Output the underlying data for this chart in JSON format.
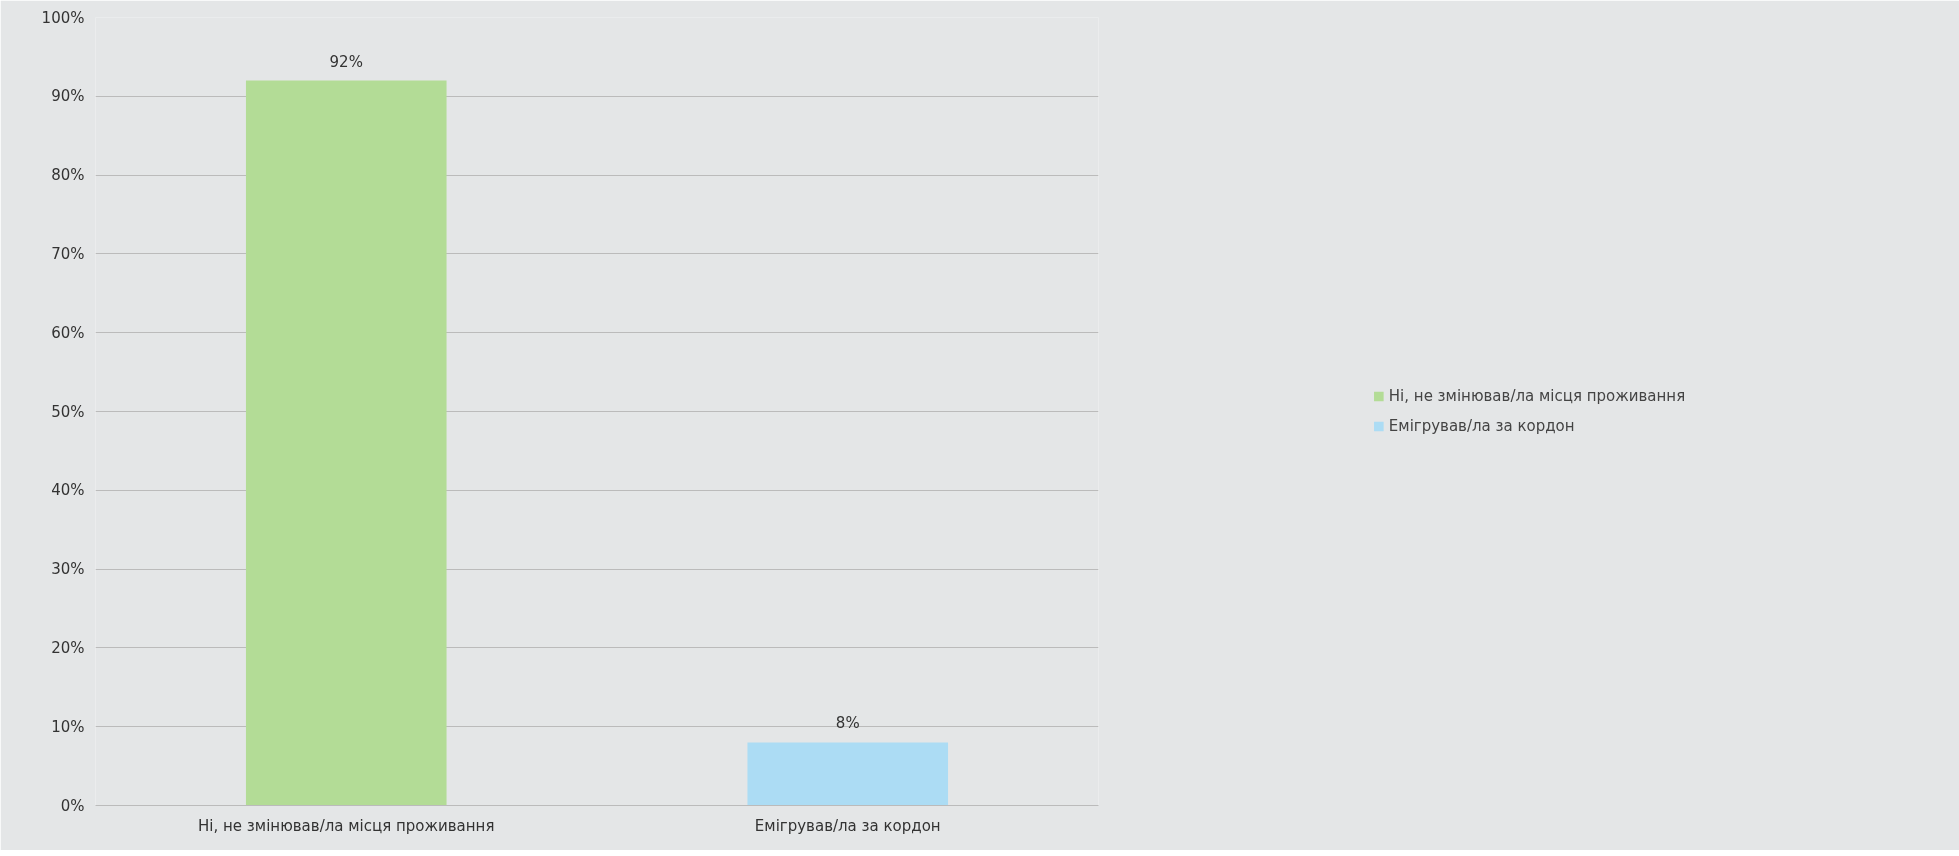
{
  "chart_data": {
    "type": "bar",
    "categories": [
      "Ні, не змінював/ла місця проживання",
      "Емігрував/ла за кордон"
    ],
    "series": [
      {
        "name": "Ні, не змінював/ла місця проживання",
        "color": "#b3dc96",
        "values": [
          92,
          null
        ],
        "value_labels": [
          "92%",
          null
        ]
      },
      {
        "name": "Емігрував/ла за кордон",
        "color": "#acdcf4",
        "values": [
          null,
          8
        ],
        "value_labels": [
          null,
          "8%"
        ]
      }
    ],
    "ylim": [
      0,
      100
    ],
    "yticks": [
      {
        "value": 0,
        "label": "0%"
      },
      {
        "value": 10,
        "label": "10%"
      },
      {
        "value": 20,
        "label": "20%"
      },
      {
        "value": 30,
        "label": "30%"
      },
      {
        "value": 40,
        "label": "40%"
      },
      {
        "value": 50,
        "label": "50%"
      },
      {
        "value": 60,
        "label": "60%"
      },
      {
        "value": 70,
        "label": "70%"
      },
      {
        "value": 80,
        "label": "80%"
      },
      {
        "value": 90,
        "label": "90%"
      },
      {
        "value": 100,
        "label": "100%"
      }
    ],
    "grid": "y",
    "legend": "right"
  }
}
